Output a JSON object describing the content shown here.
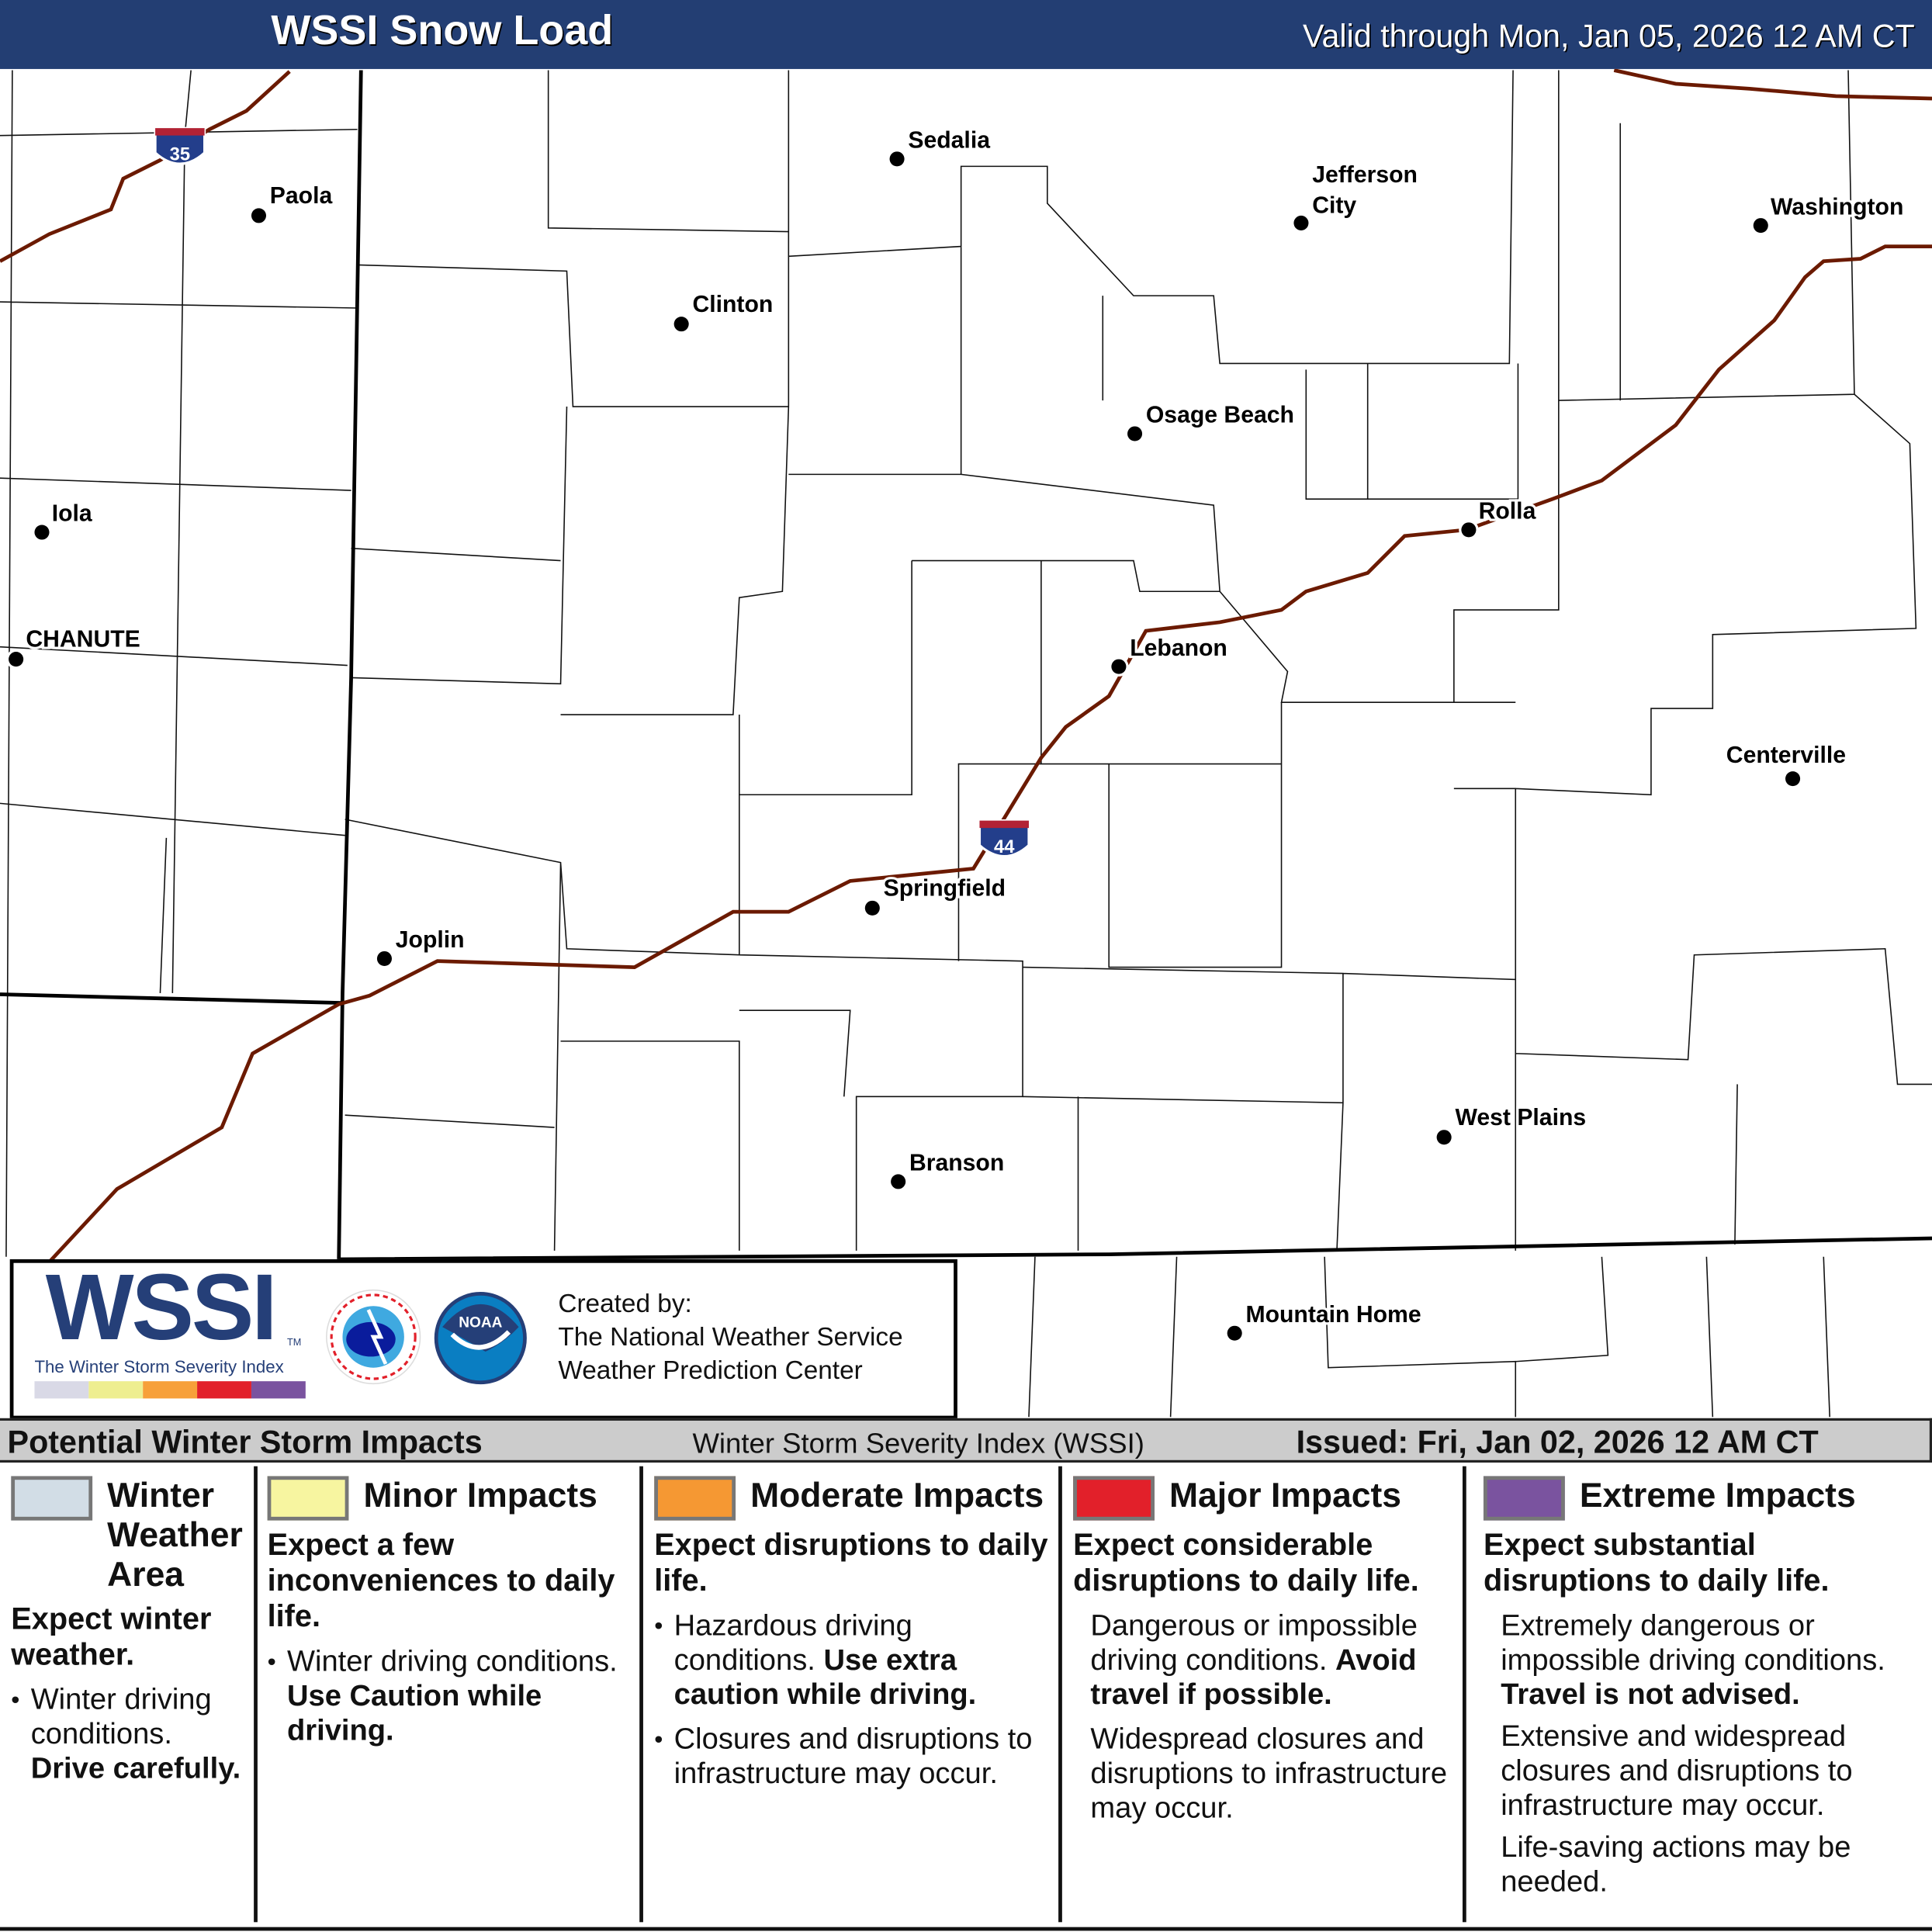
{
  "header": {
    "title": "WSSI Snow Load",
    "valid": "Valid through Mon, Jan 05, 2026 12 AM CT"
  },
  "map": {
    "interstates": [
      {
        "number": "35",
        "shield_colors": [
          "#b22234",
          "#233e8b"
        ]
      },
      {
        "number": "44",
        "shield_colors": [
          "#b22234",
          "#233e8b"
        ]
      }
    ],
    "road_color": "#6b1a00",
    "cities": [
      {
        "name": "Sedalia"
      },
      {
        "name": "Paola"
      },
      {
        "name": "Jefferson",
        "name2": "City"
      },
      {
        "name": "Washington"
      },
      {
        "name": "Clinton"
      },
      {
        "name": "Osage Beach"
      },
      {
        "name": "Iola"
      },
      {
        "name": "Rolla"
      },
      {
        "name": "CHANUTE"
      },
      {
        "name": "Lebanon"
      },
      {
        "name": "Centerville"
      },
      {
        "name": "Springfield"
      },
      {
        "name": "Joplin"
      },
      {
        "name": "West Plains"
      },
      {
        "name": "Branson"
      },
      {
        "name": "Mountain Home"
      }
    ]
  },
  "logo": {
    "wssi": "WSSI",
    "tm": "TM",
    "subtitle": "The Winter Storm Severity Index",
    "nws_text": "NATIONAL WEATHER SERVICE",
    "noaa_text": "NOAA",
    "created_by": "Created by:",
    "org1": "The National Weather Service",
    "org2": "Weather Prediction Center",
    "bar_colors": [
      "#d9d9e6",
      "#eeee90",
      "#f7a03a",
      "#e2202a",
      "#7a539f"
    ]
  },
  "legend": {
    "heading": "Potential Winter Storm Impacts",
    "index_name": "Winter Storm Severity Index (WSSI)",
    "issued": "Issued: Fri, Jan 02, 2026 12 AM CT",
    "categories": [
      {
        "title1": "Winter",
        "title2": "Weather",
        "title3": "Area",
        "color": "#d2dde6",
        "lead": "Expect winter weather.",
        "b1": "Winter driving conditions.",
        "b1_bold": "Drive carefully."
      },
      {
        "title1": "Minor Impacts",
        "color": "#f7f5a0",
        "lead": "Expect a few inconveniences to daily life.",
        "b1": "Winter driving conditions.",
        "b1_bold": "Use Caution while driving."
      },
      {
        "title1": "Moderate Impacts",
        "color": "#f59833",
        "lead": "Expect disruptions to daily life.",
        "b1": "Hazardous driving conditions.",
        "b1_bold": "Use extra caution while driving.",
        "b2": "Closures and disruptions to infrastructure may occur."
      },
      {
        "title1": "Major Impacts",
        "color": "#e2202a",
        "lead": "Expect considerable disruptions to daily life.",
        "b1": "Dangerous or impossible driving conditions.",
        "b1_bold": "Avoid travel if possible.",
        "b2": "Widespread closures and disruptions to infrastructure may occur."
      },
      {
        "title1": "Extreme Impacts",
        "color": "#7a539f",
        "lead": "Expect substantial disruptions to daily life.",
        "b1": "Extremely dangerous or impossible driving conditions.",
        "b1_bold": "Travel is not advised.",
        "b2": "Extensive and widespread closures and disruptions to infrastructure may occur.",
        "b3": "Life-saving actions may be needed."
      }
    ]
  }
}
